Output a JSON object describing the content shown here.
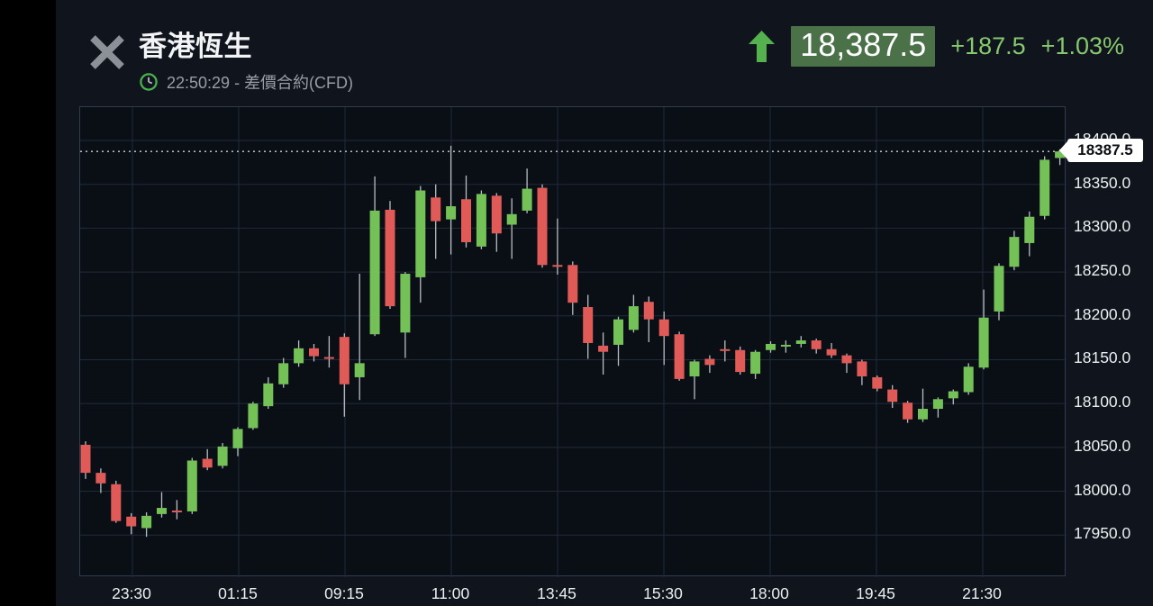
{
  "header": {
    "title": "香港恆生",
    "subtitle": "22:50:29 - 差價合約(CFD)",
    "price": "18,387.5",
    "change": "+187.5",
    "change_pct": "+1.03%"
  },
  "colors": {
    "up_candle": "#74c257",
    "down_candle": "#e05b57",
    "wick": "#b8bdc2",
    "grid": "#202b3a",
    "plot_border": "#2e3c4d",
    "price_box_bg": "#4a7148",
    "change_green": "#87c86e",
    "arrow_green": "#55b14e",
    "clock_green": "#4caf50",
    "close_gray": "#8b9197",
    "background": "#0f141d",
    "axis_text": "#eceff1",
    "current_price_line": "#d0d4d9"
  },
  "chart_data": {
    "type": "candlestick",
    "x_labels": [
      "23:30",
      "01:15",
      "09:15",
      "11:00",
      "13:45",
      "15:30",
      "18:00",
      "19:45",
      "21:30"
    ],
    "y_tick_labels": [
      "18400.0",
      "18350.0",
      "18300.0",
      "18250.0",
      "18200.0",
      "18150.0",
      "18100.0",
      "18050.0",
      "18000.0",
      "17950.0"
    ],
    "y_ticks": [
      18400,
      18350,
      18300,
      18250,
      18200,
      18150,
      18100,
      18050,
      18000,
      17950
    ],
    "y_axis": {
      "top_price": 18438,
      "bottom_price": 17902
    },
    "grid": true,
    "current_price": 18387.5,
    "current_price_label": "18387.5",
    "candle_columns": [
      "open",
      "high",
      "low",
      "close"
    ],
    "candles": [
      [
        18053,
        18057,
        18014,
        18021
      ],
      [
        18021,
        18026,
        17998,
        18009
      ],
      [
        18008,
        18012,
        17964,
        17966
      ],
      [
        17971,
        17975,
        17951,
        17960
      ],
      [
        17958,
        17976,
        17948,
        17972
      ],
      [
        17974,
        17999,
        17970,
        17981
      ],
      [
        17978,
        17990,
        17968,
        17976
      ],
      [
        17977,
        18038,
        17974,
        18035
      ],
      [
        18037,
        18048,
        18024,
        18027
      ],
      [
        18029,
        18055,
        18026,
        18051
      ],
      [
        18049,
        18073,
        18040,
        18071
      ],
      [
        18072,
        18102,
        18070,
        18100
      ],
      [
        18097,
        18130,
        18094,
        18123
      ],
      [
        18122,
        18152,
        18118,
        18146
      ],
      [
        18146,
        18172,
        18142,
        18163
      ],
      [
        18163,
        18168,
        18148,
        18154
      ],
      [
        18153,
        18177,
        18141,
        18152
      ],
      [
        18176,
        18180,
        18085,
        18122
      ],
      [
        18130,
        18248,
        18104,
        18146
      ],
      [
        18179,
        18359,
        18177,
        18320
      ],
      [
        18321,
        18331,
        18208,
        18211
      ],
      [
        18181,
        18250,
        18152,
        18248
      ],
      [
        18244,
        18348,
        18215,
        18343
      ],
      [
        18335,
        18350,
        18265,
        18308
      ],
      [
        18310,
        18394,
        18270,
        18325
      ],
      [
        18333,
        18360,
        18278,
        18284
      ],
      [
        18279,
        18343,
        18276,
        18339
      ],
      [
        18337,
        18340,
        18273,
        18294
      ],
      [
        18304,
        18334,
        18265,
        18316
      ],
      [
        18320,
        18368,
        18317,
        18345
      ],
      [
        18346,
        18350,
        18255,
        18258
      ],
      [
        18258,
        18311,
        18247,
        18257
      ],
      [
        18258,
        18262,
        18201,
        18215
      ],
      [
        18210,
        18224,
        18151,
        18169
      ],
      [
        18166,
        18181,
        18133,
        18159
      ],
      [
        18167,
        18199,
        18143,
        18196
      ],
      [
        18184,
        18224,
        18181,
        18211
      ],
      [
        18216,
        18222,
        18170,
        18196
      ],
      [
        18196,
        18205,
        18144,
        18177
      ],
      [
        18179,
        18182,
        18126,
        18128
      ],
      [
        18131,
        18150,
        18105,
        18148
      ],
      [
        18151,
        18155,
        18135,
        18144
      ],
      [
        18162,
        18172,
        18148,
        18161
      ],
      [
        18161,
        18165,
        18133,
        18136
      ],
      [
        18134,
        18161,
        18128,
        18159
      ],
      [
        18161,
        18171,
        18158,
        18168
      ],
      [
        18165,
        18172,
        18158,
        18167
      ],
      [
        18168,
        18177,
        18164,
        18172
      ],
      [
        18172,
        18174,
        18157,
        18162
      ],
      [
        18162,
        18169,
        18152,
        18155
      ],
      [
        18155,
        18157,
        18135,
        18146
      ],
      [
        18148,
        18150,
        18121,
        18131
      ],
      [
        18130,
        18132,
        18114,
        18117
      ],
      [
        18116,
        18121,
        18095,
        18102
      ],
      [
        18101,
        18103,
        18078,
        18082
      ],
      [
        18082,
        18117,
        18079,
        18094
      ],
      [
        18094,
        18107,
        18084,
        18105
      ],
      [
        18106,
        18116,
        18099,
        18114
      ],
      [
        18113,
        18146,
        18110,
        18142
      ],
      [
        18141,
        18230,
        18139,
        18198
      ],
      [
        18205,
        18260,
        18195,
        18257
      ],
      [
        18256,
        18297,
        18252,
        18290
      ],
      [
        18283,
        18319,
        18268,
        18313
      ],
      [
        18314,
        18382,
        18310,
        18378
      ],
      [
        18380,
        18390,
        18372,
        18387.5
      ]
    ]
  }
}
